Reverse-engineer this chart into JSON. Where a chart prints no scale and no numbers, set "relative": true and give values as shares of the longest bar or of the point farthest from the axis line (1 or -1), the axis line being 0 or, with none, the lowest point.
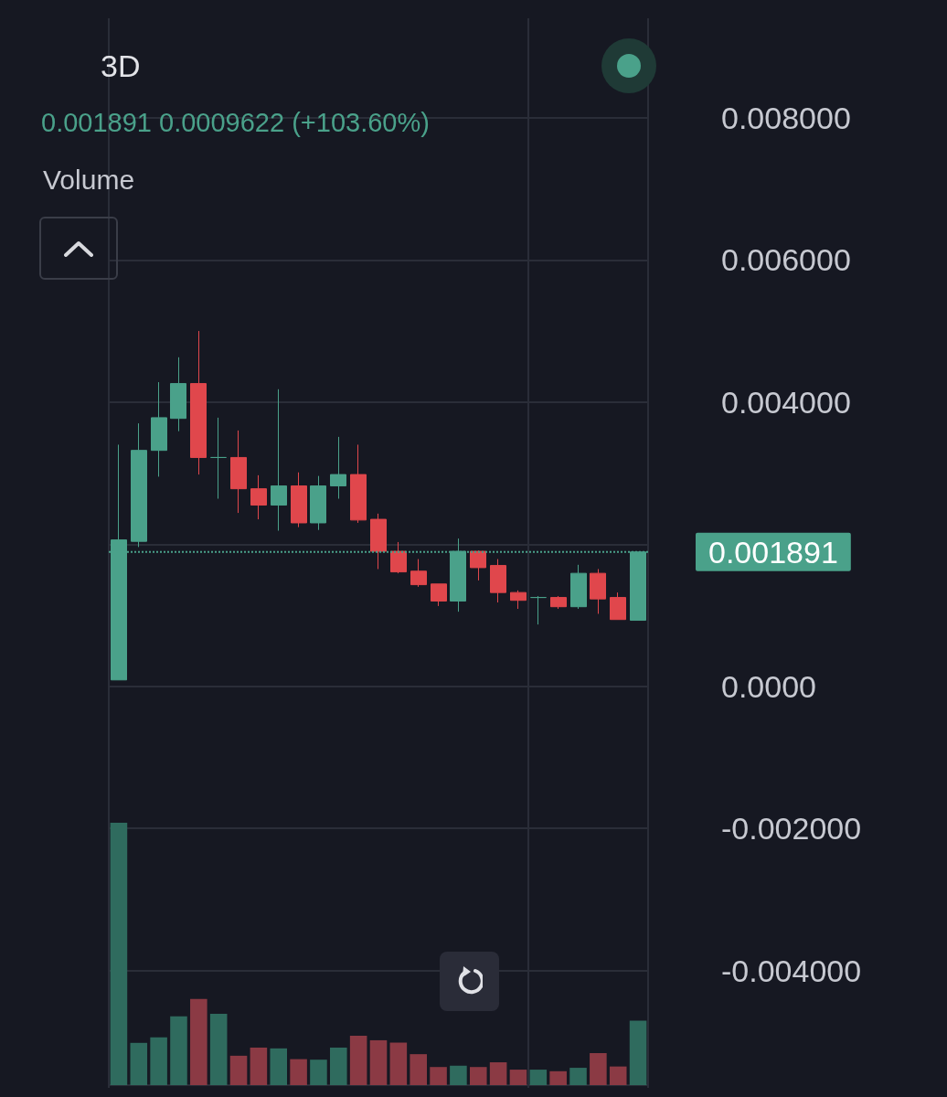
{
  "chart_data": [
    {
      "type": "candlestick",
      "title": "3D",
      "subtitle": "0.001891 0.0009622 (+103.60%)",
      "categories": [
        null,
        null,
        null,
        null,
        null,
        null,
        null,
        null,
        null,
        null,
        null,
        null,
        null,
        null,
        null,
        null,
        null,
        null,
        null,
        null,
        null,
        null,
        null,
        null,
        null,
        null,
        null
      ],
      "ohlc": [
        [
          9e-05,
          0.0034,
          9e-05,
          0.00206
        ],
        [
          0.00204,
          0.0037,
          0.00196,
          0.00332
        ],
        [
          0.00332,
          0.00428,
          0.00295,
          0.00378
        ],
        [
          0.00377,
          0.00463,
          0.00359,
          0.00426
        ],
        [
          0.00426,
          0.005,
          0.00298,
          0.00322
        ],
        [
          0.00322,
          0.00378,
          0.00264,
          0.00322
        ],
        [
          0.00322,
          0.0036,
          0.00244,
          0.00278
        ],
        [
          0.00278,
          0.00297,
          0.00235,
          0.00255
        ],
        [
          0.00255,
          0.00418,
          0.00219,
          0.00282
        ],
        [
          0.00282,
          0.00301,
          0.00224,
          0.0023
        ],
        [
          0.0023,
          0.00296,
          0.0022,
          0.00282
        ],
        [
          0.00282,
          0.00351,
          0.00264,
          0.00298
        ],
        [
          0.00298,
          0.0034,
          0.0023,
          0.00234
        ],
        [
          0.00235,
          0.00243,
          0.00165,
          0.0019
        ],
        [
          0.0019,
          0.00203,
          0.00159,
          0.00161
        ],
        [
          0.00162,
          0.00179,
          0.0014,
          0.00143
        ],
        [
          0.00144,
          0.00144,
          0.00113,
          0.0012
        ],
        [
          0.0012,
          0.00208,
          0.00105,
          0.0019
        ],
        [
          0.0019,
          0.00191,
          0.00149,
          0.00167
        ],
        [
          0.0017,
          0.00179,
          0.00118,
          0.00132
        ],
        [
          0.00132,
          0.00135,
          0.00109,
          0.00121
        ],
        [
          0.00125,
          0.00127,
          0.00087,
          0.00125
        ],
        [
          0.00125,
          0.00127,
          0.00109,
          0.00112
        ],
        [
          0.00112,
          0.00171,
          0.00109,
          0.00159
        ],
        [
          0.00159,
          0.00165,
          0.00102,
          0.00123
        ],
        [
          0.00125,
          0.00132,
          0.00094,
          0.00094
        ],
        [
          0.000929,
          0.001891,
          0.000929,
          0.001891
        ]
      ],
      "colors": [
        "#4aa18a",
        "#4aa18a",
        "#4aa18a",
        "#4aa18a",
        "#e0474c",
        "#4aa18a",
        "#e0474c",
        "#e0474c",
        "#4aa18a",
        "#e0474c",
        "#4aa18a",
        "#4aa18a",
        "#e0474c",
        "#e0474c",
        "#e0474c",
        "#e0474c",
        "#e0474c",
        "#4aa18a",
        "#e0474c",
        "#e0474c",
        "#e0474c",
        "#4aa18a",
        "#e0474c",
        "#4aa18a",
        "#e0474c",
        "#e0474c",
        "#4aa18a"
      ],
      "ylim": [
        -0.00565,
        0.0094
      ],
      "yticks": [
        {
          "value": -0.004,
          "label": "-0.004000"
        },
        {
          "value": -0.002,
          "label": "-0.002000"
        },
        {
          "value": 0,
          "label": "0.0000"
        },
        {
          "value": 0.002,
          "label": null
        },
        {
          "value": 0.004,
          "label": "0.004000"
        },
        {
          "value": 0.006,
          "label": "0.006000"
        },
        {
          "value": 0.008,
          "label": "0.008000"
        }
      ],
      "grid": true,
      "ref_lines": [
        {
          "axis": "y",
          "value": 0.001891,
          "label": "0.001891",
          "color": "#4aa18a",
          "line_style": "dotted"
        }
      ]
    },
    {
      "type": "bar",
      "title": "Volume",
      "relative": true,
      "categories": [
        null,
        null,
        null,
        null,
        null,
        null,
        null,
        null,
        null,
        null,
        null,
        null,
        null,
        null,
        null,
        null,
        null,
        null,
        null,
        null,
        null,
        null,
        null,
        null,
        null,
        null,
        null
      ],
      "values": [
        1,
        0.161,
        0.182,
        0.262,
        0.328,
        0.272,
        0.112,
        0.143,
        0.14,
        0.099,
        0.097,
        0.143,
        0.188,
        0.171,
        0.162,
        0.118,
        0.069,
        0.074,
        0.069,
        0.087,
        0.059,
        0.059,
        0.053,
        0.066,
        0.122,
        0.071,
        0.246
      ],
      "colors": [
        "#2f6b5e",
        "#2f6b5e",
        "#2f6b5e",
        "#2f6b5e",
        "#8b3a44",
        "#2f6b5e",
        "#8b3a44",
        "#8b3a44",
        "#2f6b5e",
        "#8b3a44",
        "#2f6b5e",
        "#2f6b5e",
        "#8b3a44",
        "#8b3a44",
        "#8b3a44",
        "#8b3a44",
        "#8b3a44",
        "#2f6b5e",
        "#8b3a44",
        "#8b3a44",
        "#8b3a44",
        "#2f6b5e",
        "#8b3a44",
        "#2f6b5e",
        "#8b3a44",
        "#8b3a44",
        "#2f6b5e"
      ]
    }
  ]
}
